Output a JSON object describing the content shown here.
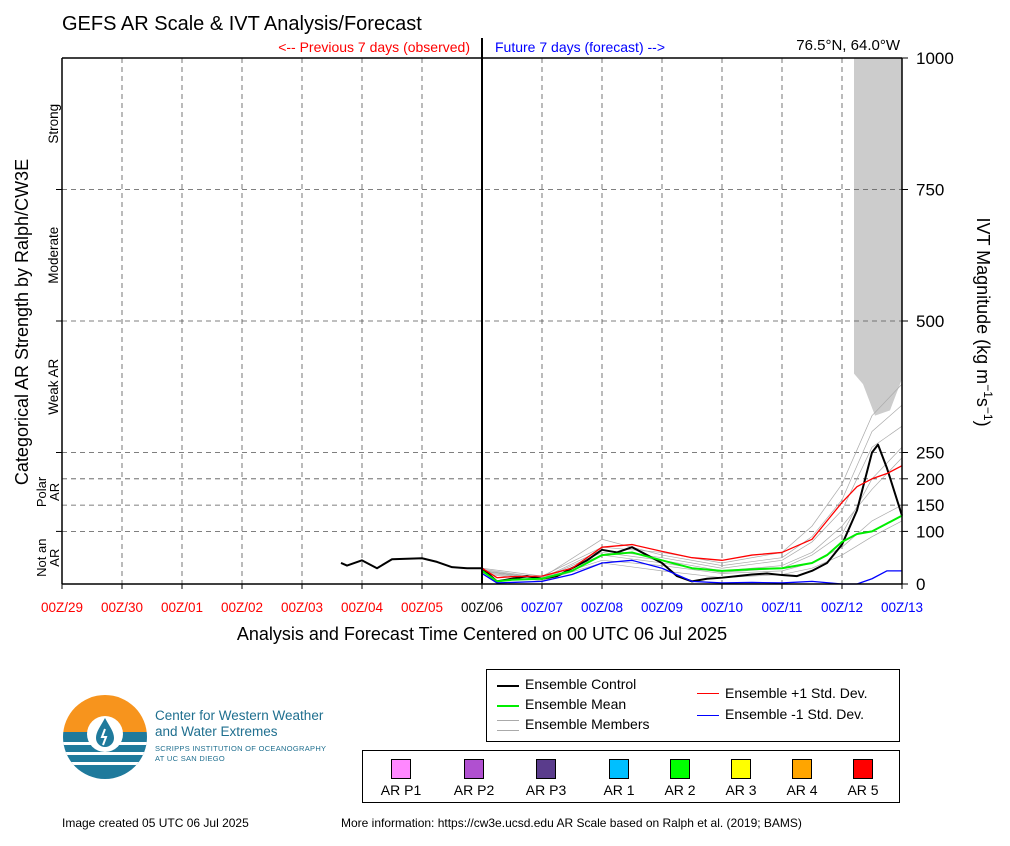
{
  "chart_data": {
    "type": "line",
    "title": "GEFS AR Scale & IVT Analysis/Forecast",
    "location": "76.5°N, 64.0°W",
    "previous_label": "<-- Previous 7 days (observed)",
    "future_label": "Future 7 days (forecast) -->",
    "xlabel": "Analysis and Forecast Time Centered on 00 UTC 06 Jul 2025",
    "ylabel_left": "Categorical AR Strength by Ralph/CW3E",
    "ylabel_right_base": "IVT Magnitude (kg m",
    "ylabel_right_exp1": "−1",
    "ylabel_right_mid": "s",
    "ylabel_right_exp2": "−1",
    "ylabel_right_end": ")",
    "x_ticks": [
      {
        "label": "00Z/29",
        "day": -7,
        "color": "#ff0000"
      },
      {
        "label": "00Z/30",
        "day": -6,
        "color": "#ff0000"
      },
      {
        "label": "00Z/01",
        "day": -5,
        "color": "#ff0000"
      },
      {
        "label": "00Z/02",
        "day": -4,
        "color": "#ff0000"
      },
      {
        "label": "00Z/03",
        "day": -3,
        "color": "#ff0000"
      },
      {
        "label": "00Z/04",
        "day": -2,
        "color": "#ff0000"
      },
      {
        "label": "00Z/05",
        "day": -1,
        "color": "#ff0000"
      },
      {
        "label": "00Z/06",
        "day": 0,
        "color": "#000000"
      },
      {
        "label": "00Z/07",
        "day": 1,
        "color": "#0000ff"
      },
      {
        "label": "00Z/08",
        "day": 2,
        "color": "#0000ff"
      },
      {
        "label": "00Z/09",
        "day": 3,
        "color": "#0000ff"
      },
      {
        "label": "00Z/10",
        "day": 4,
        "color": "#0000ff"
      },
      {
        "label": "00Z/11",
        "day": 5,
        "color": "#0000ff"
      },
      {
        "label": "00Z/12",
        "day": 6,
        "color": "#0000ff"
      },
      {
        "label": "00Z/13",
        "day": 7,
        "color": "#0000ff"
      }
    ],
    "xlim": [
      -7,
      7
    ],
    "y_ticks": [
      0,
      100,
      150,
      200,
      250,
      500,
      750,
      1000
    ],
    "ylim": [
      0,
      1000
    ],
    "categories_left": [
      {
        "label": "Strong",
        "ylo": 750,
        "yhi": 1000
      },
      {
        "label": "Moderate",
        "ylo": 500,
        "yhi": 750
      },
      {
        "label": "Weak AR",
        "ylo": 250,
        "yhi": 500
      },
      {
        "label": "Polar AR",
        "ylo": 100,
        "yhi": 250
      },
      {
        "label": "Not an AR",
        "ylo": 0,
        "yhi": 100
      }
    ],
    "grid": true,
    "series": [
      {
        "name": "Ensemble Control",
        "color": "#000000",
        "width": 2,
        "x": [
          -2.35,
          -2.25,
          -2.0,
          -1.75,
          -1.5,
          -1.0,
          -0.75,
          -0.5,
          -0.25,
          0,
          0.1,
          0.25,
          0.5,
          0.75,
          1.0,
          1.25,
          1.5,
          1.75,
          2.0,
          2.25,
          2.5,
          2.75,
          3.0,
          3.25,
          3.5,
          3.75,
          4.0,
          4.25,
          4.5,
          4.75,
          5.0,
          5.25,
          5.5,
          5.75,
          6.0,
          6.25,
          6.5,
          6.6,
          6.75,
          7.0
        ],
        "y": [
          40,
          35,
          45,
          30,
          47,
          49,
          42,
          32,
          30,
          30,
          20,
          5,
          10,
          15,
          10,
          15,
          30,
          45,
          65,
          60,
          70,
          55,
          40,
          15,
          5,
          10,
          12,
          15,
          18,
          20,
          17,
          15,
          25,
          40,
          75,
          140,
          250,
          265,
          220,
          130
        ]
      },
      {
        "name": "Ensemble Mean",
        "color": "#00ee00",
        "width": 2,
        "x": [
          0,
          0.25,
          0.5,
          1.0,
          1.5,
          2.0,
          2.5,
          3.0,
          3.5,
          4.0,
          4.5,
          5.0,
          5.5,
          5.75,
          6.0,
          6.25,
          6.5,
          6.75,
          7.0
        ],
        "y": [
          25,
          5,
          8,
          10,
          25,
          55,
          60,
          45,
          30,
          25,
          28,
          30,
          40,
          55,
          80,
          95,
          100,
          115,
          130
        ]
      },
      {
        "name": "Ensemble +1 Std. Dev.",
        "color": "#ff0000",
        "width": 1.3,
        "x": [
          0,
          0.25,
          0.5,
          1.0,
          1.5,
          2.0,
          2.5,
          3.0,
          3.5,
          4.0,
          4.5,
          5.0,
          5.5,
          5.75,
          6.0,
          6.25,
          6.5,
          6.75,
          7.0
        ],
        "y": [
          30,
          12,
          14,
          15,
          30,
          70,
          75,
          62,
          50,
          45,
          55,
          60,
          85,
          120,
          155,
          185,
          200,
          210,
          225
        ]
      },
      {
        "name": "Ensemble -1 Std. Dev.",
        "color": "#0000ff",
        "width": 1.3,
        "x": [
          0,
          0.25,
          0.5,
          1.0,
          1.5,
          2.0,
          2.5,
          3.0,
          3.5,
          4.0,
          4.5,
          5.0,
          5.5,
          6.0,
          6.25,
          6.5,
          6.75,
          7.0
        ],
        "y": [
          20,
          2,
          3,
          5,
          18,
          40,
          45,
          30,
          5,
          2,
          3,
          2,
          5,
          0,
          0,
          10,
          25,
          25
        ]
      }
    ],
    "members": [
      {
        "name": "Ensemble Members",
        "color": "#aaaaaa",
        "x": [
          0,
          1,
          2,
          3,
          4,
          5,
          5.5,
          6,
          6.5,
          7
        ],
        "y": [
          25,
          10,
          60,
          45,
          25,
          35,
          60,
          110,
          180,
          240
        ]
      },
      {
        "x": [
          0,
          1,
          2,
          3,
          4,
          5,
          5.5,
          6,
          6.5,
          7
        ],
        "y": [
          28,
          12,
          85,
          55,
          35,
          50,
          90,
          160,
          290,
          340
        ]
      },
      {
        "x": [
          0,
          1,
          2,
          3,
          4,
          5,
          5.5,
          6,
          6.5,
          7
        ],
        "y": [
          22,
          8,
          45,
          35,
          20,
          25,
          40,
          70,
          120,
          150
        ]
      },
      {
        "x": [
          0,
          1,
          2,
          3,
          4,
          5,
          5.5,
          6,
          6.5,
          7
        ],
        "y": [
          30,
          15,
          70,
          60,
          40,
          60,
          110,
          190,
          320,
          380
        ]
      },
      {
        "x": [
          0,
          1,
          2,
          3,
          4,
          5,
          5.5,
          6,
          6.5,
          7
        ],
        "y": [
          20,
          6,
          40,
          25,
          12,
          18,
          30,
          55,
          90,
          120
        ]
      },
      {
        "x": [
          0,
          1,
          2,
          3,
          4,
          5,
          5.5,
          6,
          6.5,
          7
        ],
        "y": [
          26,
          11,
          65,
          50,
          30,
          45,
          80,
          140,
          260,
          300
        ]
      },
      {
        "x": [
          0,
          1,
          2,
          3,
          4,
          5,
          5.5,
          6,
          6.5,
          7
        ],
        "y": [
          24,
          9,
          55,
          40,
          22,
          30,
          55,
          95,
          200,
          260
        ]
      }
    ],
    "shaded_region": {
      "x_start": 6.2,
      "x_end": 7.0,
      "y_top": 1000,
      "y_bottom": 320,
      "color": "#cccccc"
    }
  },
  "legend": {
    "control": "Ensemble Control",
    "mean": "Ensemble Mean",
    "members": "Ensemble Members",
    "plus_std": "Ensemble +1 Std. Dev.",
    "minus_std": "Ensemble -1 Std. Dev."
  },
  "ar_categories": [
    {
      "label": "AR P1",
      "color": "#ff88ff"
    },
    {
      "label": "AR P2",
      "color": "#b050d0"
    },
    {
      "label": "AR P3",
      "color": "#5a3c8c"
    },
    {
      "label": "AR 1",
      "color": "#00bfff"
    },
    {
      "label": "AR 2",
      "color": "#00ff00"
    },
    {
      "label": "AR 3",
      "color": "#ffff00"
    },
    {
      "label": "AR 4",
      "color": "#ffa500"
    },
    {
      "label": "AR 5",
      "color": "#ff0000"
    }
  ],
  "logo": {
    "line1": "Center for Western Weather",
    "line2": "and Water Extremes",
    "line3": "SCRIPPS INSTITUTION OF OCEANOGRAPHY",
    "line4": "AT UC SAN DIEGO",
    "orange": "#f7941d",
    "teal": "#1f7a9c"
  },
  "footer": {
    "created": "Image created 05 UTC 06 Jul 2025",
    "more_info": "More information: https://cw3e.ucsd.edu AR Scale based on Ralph et al. (2019; BAMS)"
  }
}
